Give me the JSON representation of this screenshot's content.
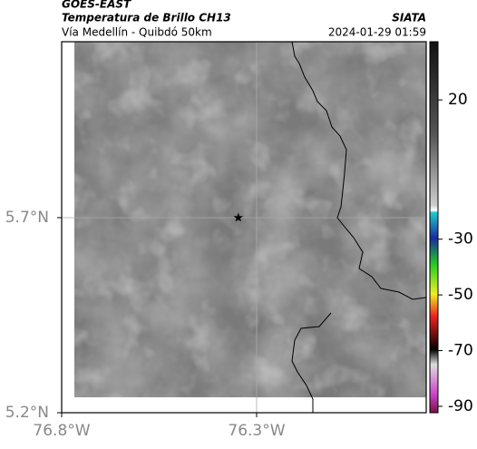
{
  "header": {
    "source": "GOES-EAST",
    "product": "Temperatura de Brillo CH13",
    "region": "Vía Medellín - Quibdó 50km",
    "agency": "SIATA",
    "timestamp": "2024-01-29 01:59"
  },
  "map": {
    "xlim": [
      -76.8,
      -75.865
    ],
    "ylim": [
      5.2,
      6.151
    ],
    "xticks": [
      {
        "value": -76.8,
        "label": "76.8°W"
      },
      {
        "value": -76.3,
        "label": "76.3°W"
      }
    ],
    "yticks": [
      {
        "value": 5.2,
        "label": "5.2°N"
      },
      {
        "value": 5.7,
        "label": "5.7°N"
      }
    ],
    "grid": true,
    "station": {
      "lon": -76.347,
      "lat": 5.7
    }
  },
  "colorbar": {
    "lim": [
      -92.3,
      40.9
    ],
    "ticks": [
      20,
      -30,
      -50,
      -70,
      -90
    ]
  }
}
